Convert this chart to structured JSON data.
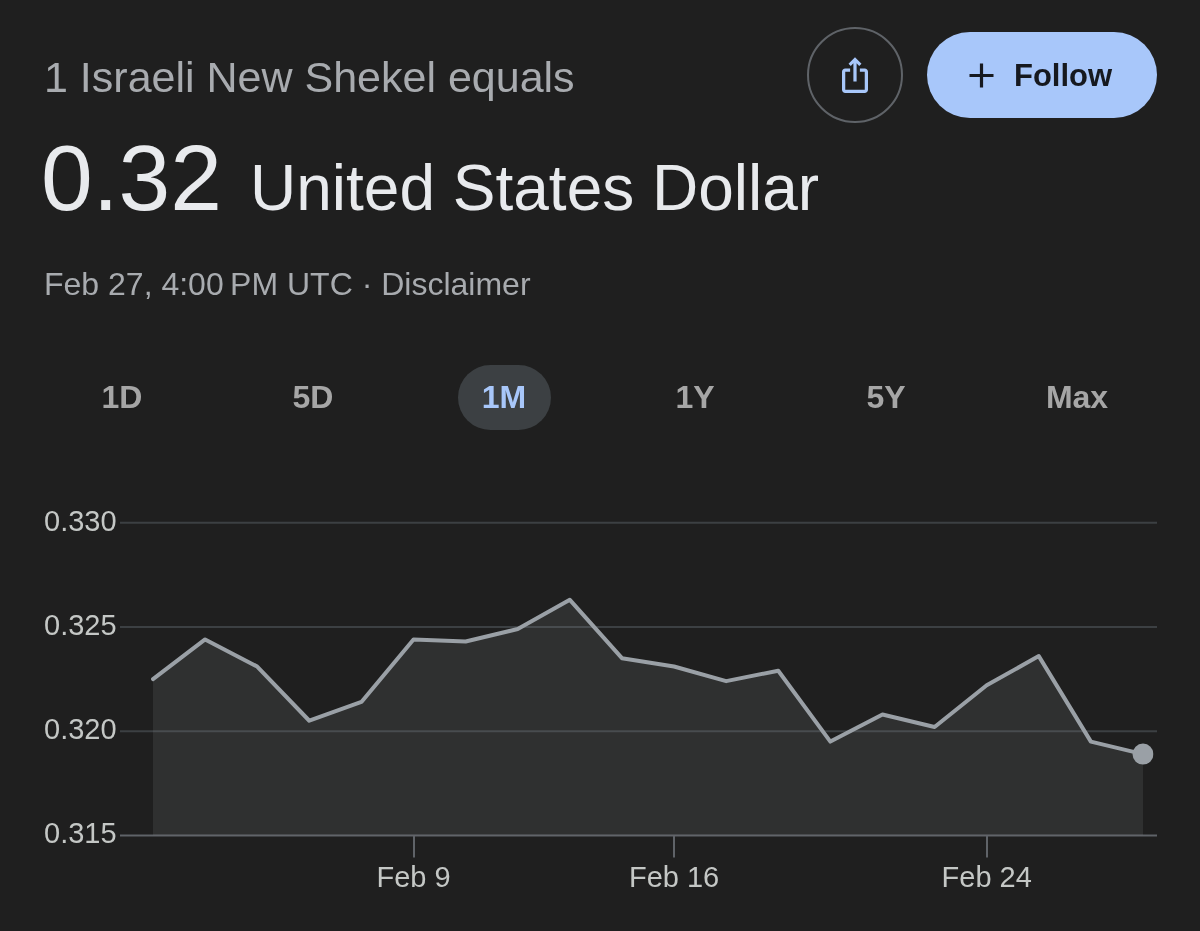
{
  "chart_data": {
    "type": "area",
    "title": "1 Israeli New Shekel equals",
    "subtitle": "0.32 United States Dollar",
    "annotations": [
      "Feb 27, 4:00 PM UTC · Disclaimer",
      "Follow",
      "1D",
      "5D",
      "1M",
      "1Y",
      "5Y",
      "Max"
    ],
    "categories": [
      null,
      null,
      null,
      null,
      null,
      "Feb 9",
      null,
      null,
      null,
      null,
      "Feb 16",
      null,
      null,
      null,
      null,
      null,
      "Feb 24",
      null,
      null,
      null
    ],
    "series": [
      {
        "color": "#9aa0a6",
        "values": [
          0.3225,
          0.3244,
          0.3231,
          0.3205,
          0.3214,
          0.3244,
          0.3243,
          0.3249,
          0.3263,
          0.3235,
          0.3231,
          0.3224,
          0.3229,
          0.3195,
          0.3208,
          0.3202,
          0.3222,
          0.3236,
          0.3195,
          0.3189
        ]
      },
      {
        "type": "scatter",
        "color": "#9aa0a6",
        "marker": "circle",
        "values": [
          null,
          null,
          null,
          null,
          null,
          null,
          null,
          null,
          null,
          null,
          null,
          null,
          null,
          null,
          null,
          null,
          null,
          null,
          null,
          0.3189
        ]
      }
    ],
    "ylim": [
      0.315,
      0.33
    ],
    "yticks": [
      {
        "value": 0.315,
        "label": "0.315"
      },
      {
        "value": 0.32,
        "label": "0.320"
      },
      {
        "value": 0.325,
        "label": "0.325"
      },
      {
        "value": 0.33,
        "label": "0.330"
      }
    ],
    "grid": "y"
  }
}
